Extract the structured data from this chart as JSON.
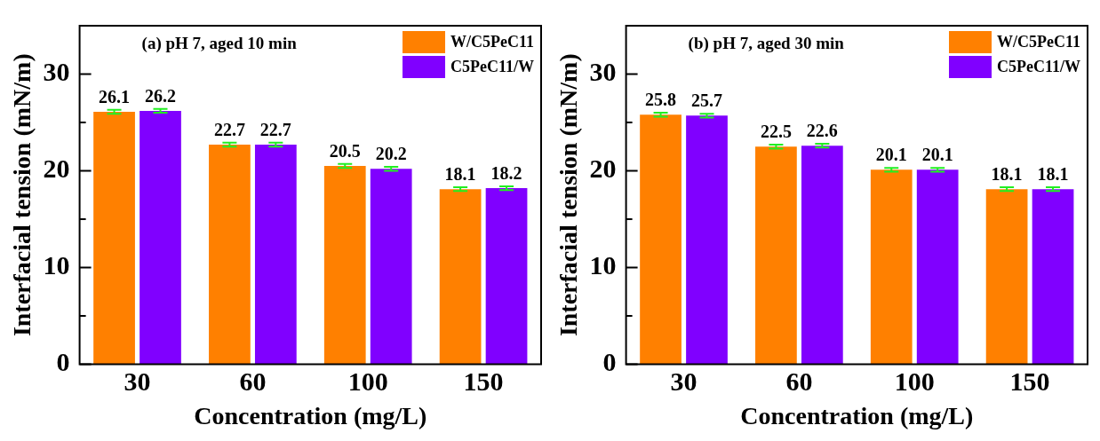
{
  "chart_data": [
    {
      "type": "bar",
      "annotations": [
        "(a) pH 7, aged 10 min"
      ],
      "xlabel": "Concentration (mg/L)",
      "ylabel": "Interfacial tension (mN/m)",
      "categories": [
        "30",
        "60",
        "100",
        "150"
      ],
      "series": [
        {
          "name": "W/C5PeC11",
          "color": "#ff8000",
          "values": [
            26.1,
            22.7,
            20.5,
            18.1
          ],
          "errors": [
            0.2,
            0.2,
            0.2,
            0.2
          ]
        },
        {
          "name": "C5PeC11/W",
          "color": "#8000ff",
          "values": [
            26.2,
            22.7,
            20.2,
            18.2
          ],
          "errors": [
            0.2,
            0.2,
            0.2,
            0.2
          ]
        }
      ],
      "ylim": [
        0,
        35
      ],
      "yticks": [
        0,
        {
          "value": 5,
          "label": null
        },
        10,
        {
          "value": 15,
          "label": null
        },
        20,
        {
          "value": 25,
          "label": null
        },
        30
      ],
      "data_labels": true,
      "legend": "top right"
    },
    {
      "type": "bar",
      "annotations": [
        "(b) pH 7, aged 30 min"
      ],
      "xlabel": "Concentration (mg/L)",
      "ylabel": "Interfacial tension (mN/m)",
      "categories": [
        "30",
        "60",
        "100",
        "150"
      ],
      "series": [
        {
          "name": "W/C5PeC11",
          "color": "#ff8000",
          "values": [
            25.8,
            22.5,
            20.1,
            18.1
          ],
          "errors": [
            0.2,
            0.2,
            0.2,
            0.2
          ]
        },
        {
          "name": "C5PeC11/W",
          "color": "#8000ff",
          "values": [
            25.7,
            22.6,
            20.1,
            18.1
          ],
          "errors": [
            0.2,
            0.2,
            0.2,
            0.2
          ]
        }
      ],
      "ylim": [
        0,
        35
      ],
      "yticks": [
        0,
        {
          "value": 5,
          "label": null
        },
        10,
        {
          "value": 15,
          "label": null
        },
        20,
        {
          "value": 25,
          "label": null
        },
        30
      ],
      "data_labels": true,
      "legend": "top right"
    }
  ]
}
